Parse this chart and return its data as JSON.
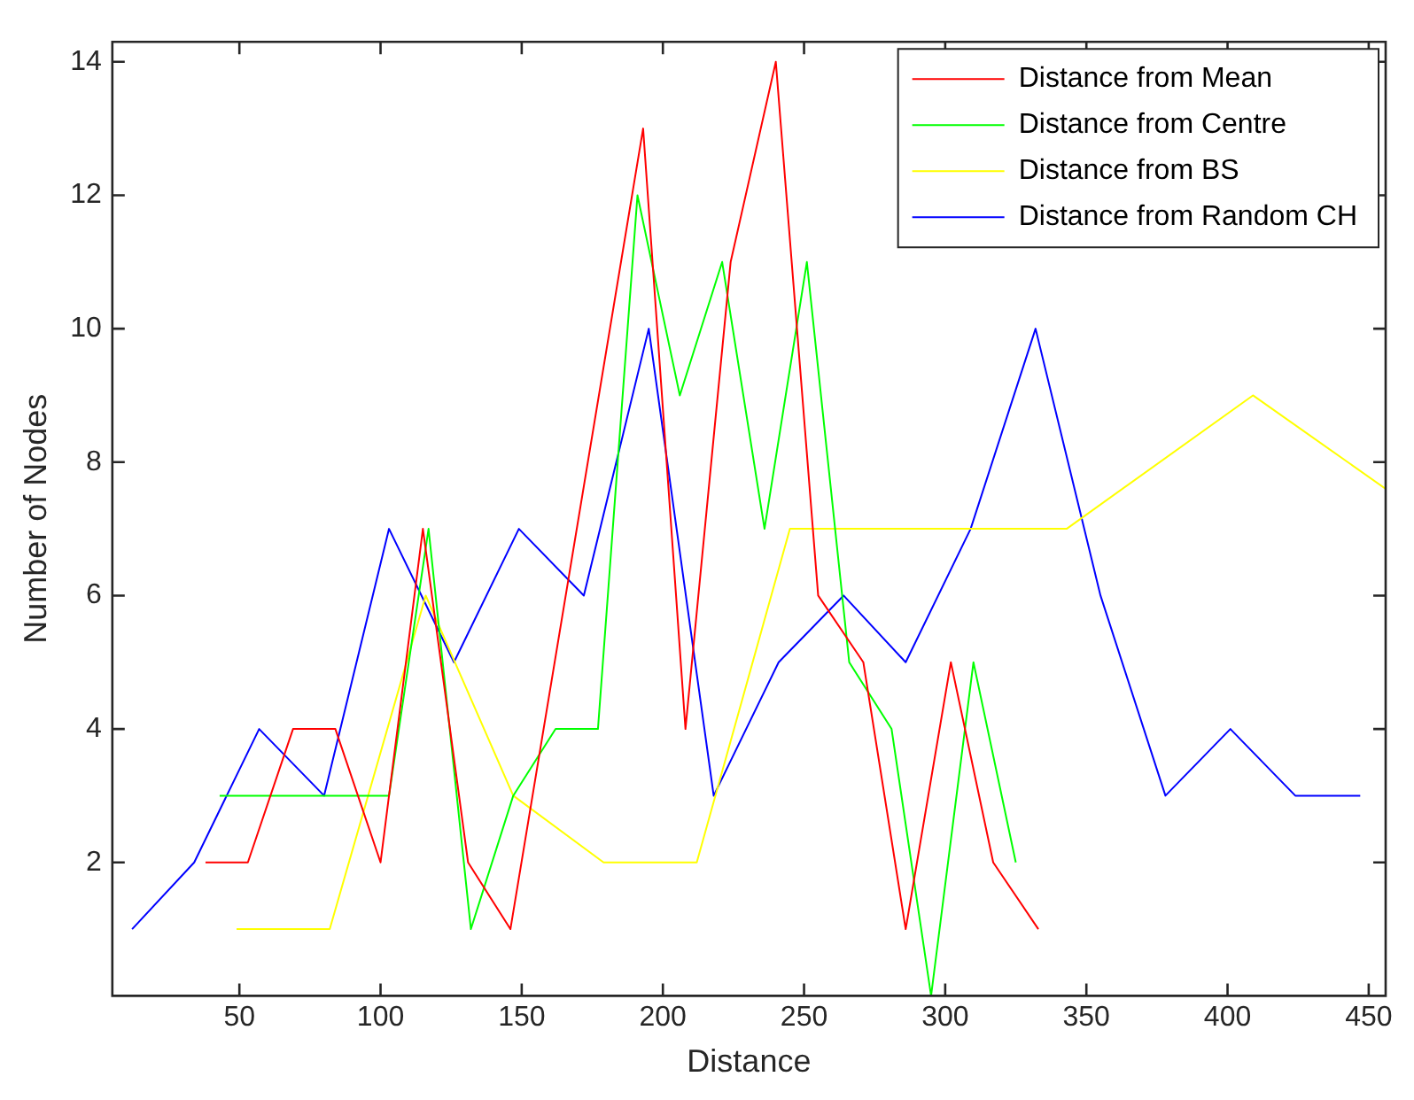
{
  "chart_data": {
    "type": "line",
    "xlabel": "Distance",
    "ylabel": "Number of Nodes",
    "xlim": [
      5,
      456
    ],
    "xticks": [
      50,
      100,
      150,
      200,
      250,
      300,
      350,
      400,
      450
    ],
    "ylim": [
      0,
      14.3
    ],
    "yticks": [
      2,
      4,
      6,
      8,
      10,
      12,
      14
    ],
    "grid": false,
    "legend": "top right",
    "marker": "none",
    "line_style": "solid",
    "series": [
      {
        "name": "Distance from Mean",
        "color": "#ff0000",
        "x": [
          38,
          53,
          69,
          84,
          100,
          115,
          131,
          146,
          193,
          208,
          224,
          240,
          255,
          271,
          286,
          302,
          317,
          333
        ],
        "values": [
          2,
          2,
          4,
          4,
          2,
          7,
          2,
          1,
          13,
          4,
          11,
          14,
          6,
          5,
          1,
          5,
          2,
          1
        ]
      },
      {
        "name": "Distance from Centre",
        "color": "#00ff00",
        "x": [
          43,
          103,
          117,
          132,
          147,
          162,
          177,
          191,
          206,
          221,
          236,
          251,
          266,
          281,
          295,
          310,
          325
        ],
        "values": [
          3,
          3,
          7,
          1,
          3,
          4,
          4,
          12,
          9,
          11,
          7,
          11,
          5,
          4,
          0,
          5,
          2
        ]
      },
      {
        "name": "Distance from BS",
        "color": "#ffff00",
        "x": [
          49,
          82,
          116,
          147,
          179,
          212,
          245,
          343,
          409,
          456
        ],
        "values": [
          1,
          1,
          6,
          3,
          2,
          2,
          7,
          7,
          9,
          7.6
        ]
      },
      {
        "name": "Distance from Random CH",
        "color": "#0000ff",
        "x": [
          12,
          34,
          57,
          80,
          103,
          126,
          149,
          172,
          195,
          218,
          241,
          264,
          286,
          309,
          332,
          355,
          378,
          401,
          424,
          447
        ],
        "values": [
          1,
          2,
          4,
          3,
          7,
          5,
          7,
          6,
          10,
          3,
          5,
          6,
          5,
          7,
          10,
          6,
          3,
          4,
          3,
          3
        ]
      }
    ]
  }
}
